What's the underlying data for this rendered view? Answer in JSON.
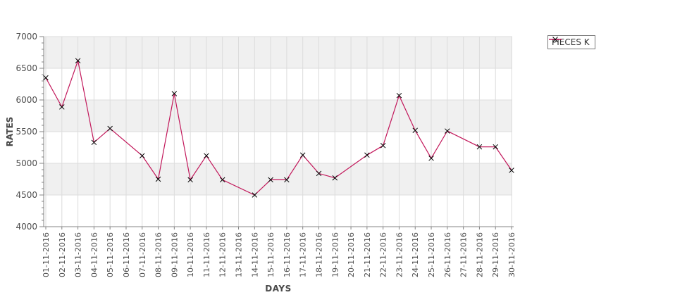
{
  "chart_data": {
    "type": "line",
    "title": "",
    "xlabel": "DAYS",
    "ylabel": "RATES",
    "categories": [
      "01-11-2016",
      "02-11-2016",
      "03-11-2016",
      "04-11-2016",
      "05-11-2016",
      "06-11-2016",
      "07-11-2016",
      "08-11-2016",
      "09-11-2016",
      "10-11-2016",
      "11-11-2016",
      "12-11-2016",
      "13-11-2016",
      "14-11-2016",
      "15-11-2016",
      "16-11-2016",
      "17-11-2016",
      "18-11-2016",
      "19-11-2016",
      "20-11-2016",
      "21-11-2016",
      "22-11-2016",
      "23-11-2016",
      "24-11-2016",
      "25-11-2016",
      "26-11-2016",
      "27-11-2016",
      "28-11-2016",
      "29-11-2016",
      "30-11-2016"
    ],
    "series": [
      {
        "name": "PIECES K",
        "values": [
          6350,
          5890,
          6620,
          5330,
          5550,
          null,
          5120,
          4750,
          6100,
          4740,
          5120,
          4740,
          null,
          4500,
          4740,
          4740,
          5130,
          4840,
          4770,
          null,
          5130,
          5280,
          6070,
          5520,
          5080,
          5510,
          null,
          5260,
          5260,
          4890
        ]
      }
    ],
    "ylim": [
      4000,
      7000
    ],
    "y_major_step": 500,
    "y_minor_step": 100,
    "grid": true,
    "legend_position": "outside-top-right",
    "marker": "x",
    "colors": {
      "series_line": "#C2185B",
      "marker": "#000000",
      "band_gray": "#F0F0F0",
      "band_white": "#FFFFFF",
      "gridline": "#DCDCDC",
      "axis_line": "#848484",
      "tick_label": "#4d4d4d"
    }
  }
}
